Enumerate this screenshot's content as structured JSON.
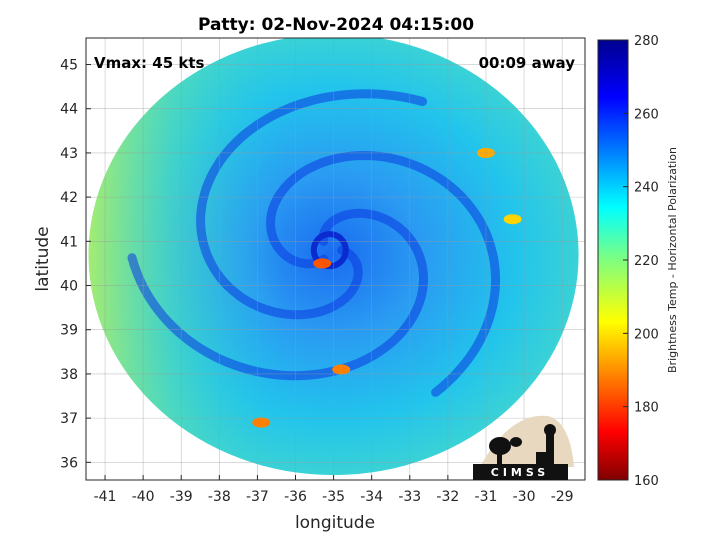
{
  "chart_data": {
    "type": "heatmap",
    "title": "Patty: 02-Nov-2024 04:15:00",
    "xlabel": "longitude",
    "ylabel": "latitude",
    "xlim": [
      -41.5,
      -28.4
    ],
    "ylim": [
      35.6,
      45.6
    ],
    "xticks": [
      "-41",
      "-40",
      "-39",
      "-38",
      "-37",
      "-36",
      "-35",
      "-34",
      "-33",
      "-32",
      "-31",
      "-30",
      "-29"
    ],
    "yticks": [
      "36",
      "37",
      "38",
      "39",
      "40",
      "41",
      "42",
      "43",
      "44",
      "45"
    ],
    "grid": true,
    "corner_left": "Vmax: 45 kts",
    "corner_right": "00:09 away",
    "colorbar": {
      "label": "Brightness Temp - Horizontal Polarization",
      "range": [
        160,
        280
      ],
      "ticks": [
        "160",
        "180",
        "200",
        "220",
        "240",
        "260",
        "280"
      ],
      "colormap": "jet"
    },
    "storm_center": {
      "lon": -35.1,
      "lat": 40.8
    },
    "swath_center": {
      "lon": -35.0,
      "lat": 40.7
    },
    "notable_features": [
      {
        "desc": "cold eyewall",
        "lon": -35.3,
        "lat": 40.5,
        "value": 185
      },
      {
        "desc": "rainband",
        "lon": -34.8,
        "lat": 38.1,
        "value": 190
      },
      {
        "desc": "rainband",
        "lon": -36.9,
        "lat": 36.9,
        "value": 190
      },
      {
        "desc": "rainband",
        "lon": -31.0,
        "lat": 43.0,
        "value": 195
      },
      {
        "desc": "rainband",
        "lon": -30.3,
        "lat": 41.5,
        "value": 200
      }
    ]
  },
  "logo": {
    "text": "CIMSS"
  }
}
